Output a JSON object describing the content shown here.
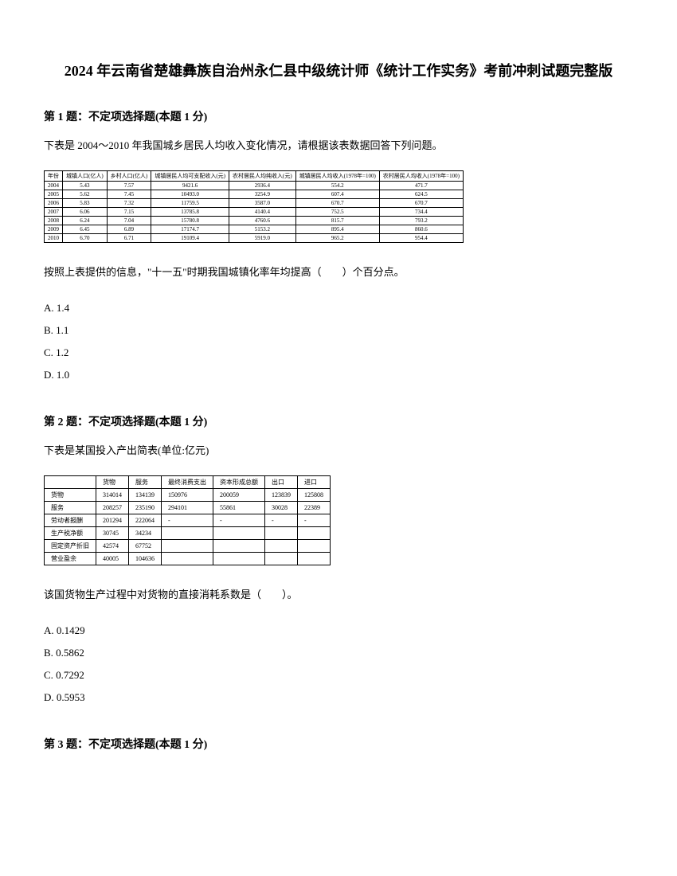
{
  "title": "2024 年云南省楚雄彝族自治州永仁县中级统计师《统计工作实务》考前冲刺试题完整版",
  "questions": [
    {
      "header": "第 1 题：不定项选择题(本题 1 分)",
      "intro": "下表是 2004～2010 年我国城乡居民人均收入变化情况，请根据该表数据回答下列问题。",
      "table1": {
        "headers": [
          "年份",
          "城镇人口(亿人)",
          "乡村人口(亿人)",
          "城镇居民人均可支配收入(元)",
          "农村居民人均纯收入(元)",
          "城镇居民人均收入(1978年=100)",
          "农村居民人均收入(1978年=100)"
        ],
        "rows": [
          [
            "2004",
            "5.43",
            "7.57",
            "9421.6",
            "2936.4",
            "554.2",
            "471.7"
          ],
          [
            "2005",
            "5.62",
            "7.45",
            "10493.0",
            "3254.9",
            "607.4",
            "624.5"
          ],
          [
            "2006",
            "5.83",
            "7.32",
            "11759.5",
            "3587.0",
            "670.7",
            "670.7"
          ],
          [
            "2007",
            "6.06",
            "7.15",
            "13785.8",
            "4140.4",
            "752.5",
            "734.4"
          ],
          [
            "2008",
            "6.24",
            "7.04",
            "15780.8",
            "4760.6",
            "815.7",
            "793.2"
          ],
          [
            "2009",
            "6.45",
            "6.89",
            "17174.7",
            "5153.2",
            "895.4",
            "860.6"
          ],
          [
            "2010",
            "6.70",
            "6.71",
            "19109.4",
            "5919.0",
            "965.2",
            "954.4"
          ]
        ]
      },
      "subquestion": "按照上表提供的信息，\"十一五\"时期我国城镇化率年均提高（　　）个百分点。",
      "options": [
        "A. 1.4",
        "B. 1.1",
        "C. 1.2",
        "D. 1.0"
      ]
    },
    {
      "header": "第 2 题：不定项选择题(本题 1 分)",
      "intro": "下表是某国投入产出简表(单位:亿元)",
      "table2": {
        "headers": [
          "",
          "货物",
          "服务",
          "最终消费支出",
          "资本形成总额",
          "出口",
          "进口"
        ],
        "rows": [
          [
            "货物",
            "314014",
            "134139",
            "150976",
            "200059",
            "123839",
            "125808"
          ],
          [
            "服务",
            "208257",
            "235190",
            "294101",
            "55861",
            "30028",
            "22389"
          ],
          [
            "劳动者报酬",
            "201294",
            "222064",
            "-",
            "-",
            "-",
            "-"
          ],
          [
            "生产税净额",
            "30745",
            "34234",
            "",
            "",
            "",
            ""
          ],
          [
            "固定资产折旧",
            "42574",
            "67752",
            "",
            "",
            "",
            ""
          ],
          [
            "营业盈余",
            "40005",
            "104636",
            "",
            "",
            "",
            ""
          ]
        ]
      },
      "subquestion": "该国货物生产过程中对货物的直接消耗系数是（　　）。",
      "options": [
        "A. 0.1429",
        "B. 0.5862",
        "C. 0.7292",
        "D. 0.5953"
      ]
    },
    {
      "header": "第 3 题：不定项选择题(本题 1 分)"
    }
  ]
}
